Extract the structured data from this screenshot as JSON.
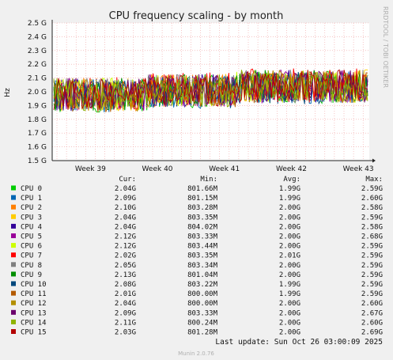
{
  "chart_data": {
    "type": "line",
    "title": "CPU frequency scaling - by month",
    "ylabel": "Hz",
    "xlabel": "",
    "y_unit": "G",
    "ylim": [
      1.5,
      2.5
    ],
    "yticks": [
      {
        "v": 2.5,
        "label": "2.5 G"
      },
      {
        "v": 2.4,
        "label": "2.4 G"
      },
      {
        "v": 2.3,
        "label": "2.3 G"
      },
      {
        "v": 2.2,
        "label": "2.2 G"
      },
      {
        "v": 2.1,
        "label": "2.1 G"
      },
      {
        "v": 2.0,
        "label": "2.0 G"
      },
      {
        "v": 1.9,
        "label": "1.9 G"
      },
      {
        "v": 1.8,
        "label": "1.8 G"
      },
      {
        "v": 1.7,
        "label": "1.7 G"
      },
      {
        "v": 1.6,
        "label": "1.6 G"
      },
      {
        "v": 1.5,
        "label": "1.5 G"
      }
    ],
    "xticks": [
      "Week 39",
      "Week 40",
      "Week 41",
      "Week 42",
      "Week 43"
    ],
    "columns": [
      "Cur:",
      "Min:",
      "Avg:",
      "Max:"
    ],
    "series": [
      {
        "name": "CPU 0",
        "color": "#00cc00",
        "cur": "2.04G",
        "min": "801.66M",
        "avg": "1.99G",
        "max": "2.59G"
      },
      {
        "name": "CPU 1",
        "color": "#0066b3",
        "cur": "2.09G",
        "min": "801.15M",
        "avg": "1.99G",
        "max": "2.60G"
      },
      {
        "name": "CPU 2",
        "color": "#ff8000",
        "cur": "2.10G",
        "min": "803.28M",
        "avg": "2.00G",
        "max": "2.58G"
      },
      {
        "name": "CPU 3",
        "color": "#ffcc00",
        "cur": "2.04G",
        "min": "803.35M",
        "avg": "2.00G",
        "max": "2.59G"
      },
      {
        "name": "CPU 4",
        "color": "#330099",
        "cur": "2.04G",
        "min": "804.02M",
        "avg": "2.00G",
        "max": "2.58G"
      },
      {
        "name": "CPU 5",
        "color": "#990099",
        "cur": "2.12G",
        "min": "803.33M",
        "avg": "2.00G",
        "max": "2.68G"
      },
      {
        "name": "CPU 6",
        "color": "#ccff00",
        "cur": "2.12G",
        "min": "803.44M",
        "avg": "2.00G",
        "max": "2.59G"
      },
      {
        "name": "CPU 7",
        "color": "#ff0000",
        "cur": "2.02G",
        "min": "803.35M",
        "avg": "2.01G",
        "max": "2.59G"
      },
      {
        "name": "CPU 8",
        "color": "#808080",
        "cur": "2.05G",
        "min": "803.34M",
        "avg": "2.00G",
        "max": "2.59G"
      },
      {
        "name": "CPU 9",
        "color": "#008f00",
        "cur": "2.13G",
        "min": "801.04M",
        "avg": "2.00G",
        "max": "2.59G"
      },
      {
        "name": "CPU 10",
        "color": "#00487d",
        "cur": "2.08G",
        "min": "803.22M",
        "avg": "1.99G",
        "max": "2.59G"
      },
      {
        "name": "CPU 11",
        "color": "#b35a00",
        "cur": "2.01G",
        "min": "800.00M",
        "avg": "1.99G",
        "max": "2.59G"
      },
      {
        "name": "CPU 12",
        "color": "#b38f00",
        "cur": "2.04G",
        "min": "800.00M",
        "avg": "2.00G",
        "max": "2.60G"
      },
      {
        "name": "CPU 13",
        "color": "#6b006b",
        "cur": "2.09G",
        "min": "803.33M",
        "avg": "2.00G",
        "max": "2.67G"
      },
      {
        "name": "CPU 14",
        "color": "#8fb300",
        "cur": "2.11G",
        "min": "800.24M",
        "avg": "2.00G",
        "max": "2.60G"
      },
      {
        "name": "CPU 15",
        "color": "#b30000",
        "cur": "2.03G",
        "min": "801.28M",
        "avg": "2.00G",
        "max": "2.69G"
      }
    ],
    "grid": true
  },
  "side_text": "RRDTOOL / TOBI OETIKER",
  "footer": {
    "last_update": "Last update: Sun Oct 26 03:00:09 2025",
    "version": "Munin 2.0.76"
  }
}
